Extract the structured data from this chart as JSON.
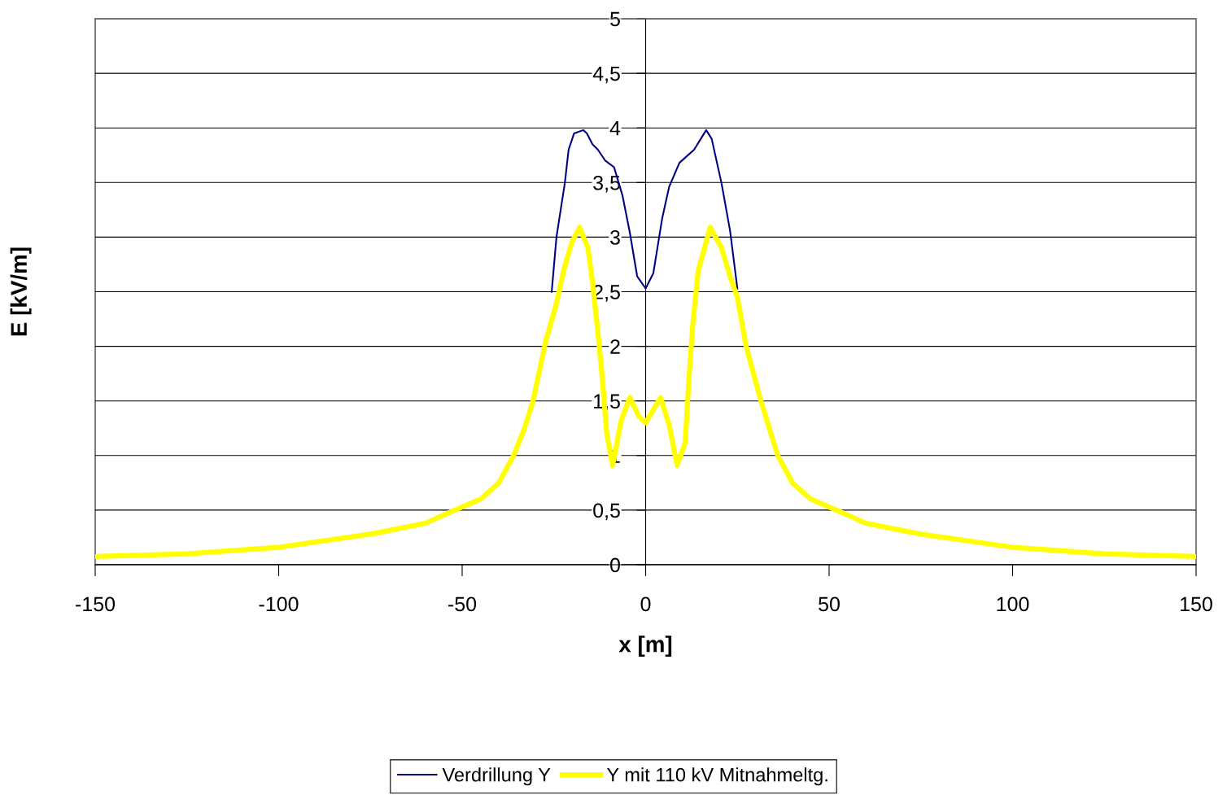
{
  "chart_data": {
    "type": "line",
    "xlabel": "x [m]",
    "ylabel": "E [kV/m]",
    "xlim": [
      -150,
      150
    ],
    "xticks": [
      -150,
      -100,
      -50,
      0,
      50,
      100,
      150
    ],
    "ylim": [
      0,
      5
    ],
    "yticks": [
      0,
      {
        "value": 0.5,
        "label": "0,5"
      },
      1,
      {
        "value": 1.5,
        "label": "1,5"
      },
      2,
      {
        "value": 2.5,
        "label": "2,5"
      },
      3,
      {
        "value": 3.5,
        "label": "3,5"
      },
      4,
      {
        "value": 4.5,
        "label": "4,5"
      },
      5
    ],
    "grid": "y",
    "legend": "bottom",
    "marker": "none",
    "line_style": "solid",
    "series": [
      {
        "name": "Verdrillung Y",
        "color": "#000080",
        "x": [
          -25.6,
          -24.3,
          -22,
          -21,
          -19.5,
          -17,
          -16,
          -14.5,
          -13,
          -11,
          -8.6,
          -6.3,
          -4.3,
          -2.3,
          0,
          2.1,
          4.5,
          6.4,
          9.2,
          13.2,
          16.5,
          18,
          20.7,
          23,
          25
        ],
        "values": [
          2.5,
          3.0,
          3.5,
          3.8,
          3.95,
          3.98,
          3.95,
          3.85,
          3.8,
          3.7,
          3.64,
          3.38,
          3.04,
          2.64,
          2.53,
          2.67,
          3.17,
          3.46,
          3.68,
          3.8,
          3.98,
          3.9,
          3.49,
          3.06,
          2.53
        ]
      },
      {
        "name": "Y mit 110 kV Mitnahmeltg.",
        "color": "#ffff00",
        "x": [
          -150,
          -125,
          -100,
          -75,
          -60,
          -52,
          -45,
          -40,
          -36,
          -33,
          -30.7,
          -27.2,
          -24.5,
          -22,
          -20,
          -18,
          -15.7,
          -14.5,
          -13,
          -11.9,
          -10.6,
          -9,
          -6.6,
          -4.3,
          -1.9,
          0,
          2.1,
          4.1,
          6.4,
          8.6,
          10.8,
          11.6,
          12.8,
          14.3,
          17.6,
          20.7,
          23,
          25,
          27.4,
          31.4,
          36,
          40,
          45,
          52,
          60,
          75,
          100,
          125,
          150
        ],
        "values": [
          0.075,
          0.1,
          0.16,
          0.28,
          0.38,
          0.5,
          0.6,
          0.75,
          1.0,
          1.25,
          1.5,
          2.05,
          2.37,
          2.74,
          2.96,
          3.09,
          2.9,
          2.59,
          2.13,
          1.74,
          1.2,
          0.91,
          1.33,
          1.53,
          1.36,
          1.3,
          1.42,
          1.53,
          1.28,
          0.91,
          1.12,
          1.6,
          2.18,
          2.69,
          3.09,
          2.9,
          2.64,
          2.45,
          2.0,
          1.5,
          1.0,
          0.75,
          0.6,
          0.5,
          0.38,
          0.28,
          0.16,
          0.1,
          0.075
        ]
      }
    ]
  }
}
